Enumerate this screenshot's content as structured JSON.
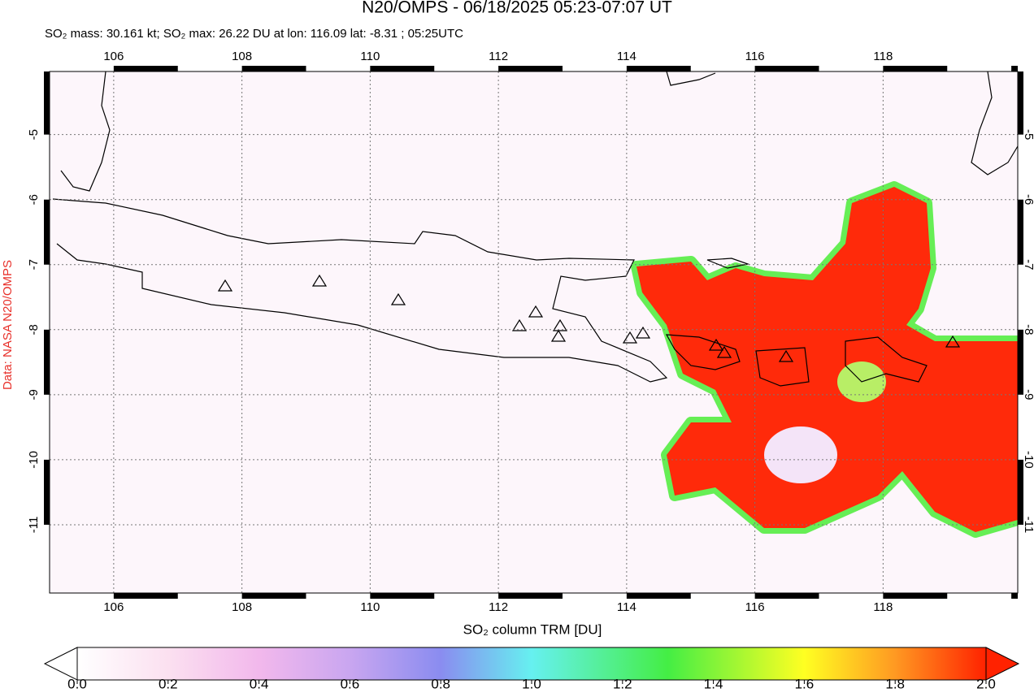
{
  "title": "N20/OMPS - 06/18/2025 05:23-07:07 UT",
  "subtitle": "SO₂ mass: 30.161 kt; SO₂ max: 26.22 DU at lon: 116.09 lat: -8.31 ; 05:25UTC",
  "credit": "Data: NASA N20/OMPS",
  "map": {
    "xlim": [
      105,
      120.1
    ],
    "ylim": [
      -12.05,
      -4.03
    ],
    "xticks": [
      106,
      108,
      110,
      112,
      114,
      116,
      118
    ],
    "yticks": [
      -5,
      -6,
      -7,
      -8,
      -9,
      -10,
      -11
    ],
    "grid": true
  },
  "colorbar": {
    "label": "SO₂ column TRM [DU]",
    "lim": [
      0,
      2
    ],
    "ticks": [
      {
        "value": 0,
        "label": "0.0"
      },
      {
        "value": 0.2,
        "label": "0.2"
      },
      {
        "value": 0.4,
        "label": "0.4"
      },
      {
        "value": 0.6,
        "label": "0.6"
      },
      {
        "value": 0.8,
        "label": "0.8"
      },
      {
        "value": 1,
        "label": "1.0"
      },
      {
        "value": 1.2,
        "label": "1.2"
      },
      {
        "value": 1.4,
        "label": "1.4"
      },
      {
        "value": 1.6,
        "label": "1.6"
      },
      {
        "value": 1.8,
        "label": "1.8"
      },
      {
        "value": 2,
        "label": "2.0"
      }
    ]
  }
}
